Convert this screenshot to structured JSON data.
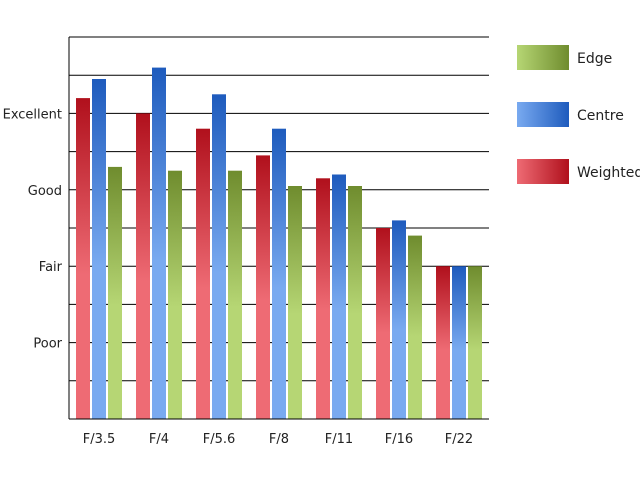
{
  "chart_data": {
    "type": "bar",
    "categories": [
      "F/3.5",
      "F/4",
      "F/5.6",
      "F/8",
      "F/11",
      "F/16",
      "F/22"
    ],
    "series": [
      {
        "name": "Weighted",
        "values": [
          8.4,
          8.0,
          7.6,
          6.9,
          6.3,
          5.0,
          4.0
        ],
        "color_light": "#ee6b74",
        "color_dark": "#b0101c"
      },
      {
        "name": "Centre",
        "values": [
          8.9,
          9.2,
          8.5,
          7.6,
          6.4,
          5.2,
          4.0
        ],
        "color_light": "#79aaf0",
        "color_dark": "#1e5bbd"
      },
      {
        "name": "Edge",
        "values": [
          6.6,
          6.5,
          6.5,
          6.1,
          6.1,
          4.8,
          4.0
        ],
        "color_light": "#b6d674",
        "color_dark": "#6f8c2e"
      }
    ],
    "yticks": [
      {
        "value": 2,
        "label": "Poor"
      },
      {
        "value": 4,
        "label": "Fair"
      },
      {
        "value": 6,
        "label": "Good"
      },
      {
        "value": 8,
        "label": "Excellent"
      }
    ],
    "ylim": [
      0,
      10
    ],
    "gridlines": [
      1,
      2,
      3,
      4,
      5,
      6,
      7,
      8,
      9,
      10
    ],
    "grid": true,
    "legend": {
      "placement": "right",
      "order": [
        "Edge",
        "Centre",
        "Weighted"
      ]
    },
    "title": "",
    "xlabel": "",
    "ylabel": ""
  }
}
